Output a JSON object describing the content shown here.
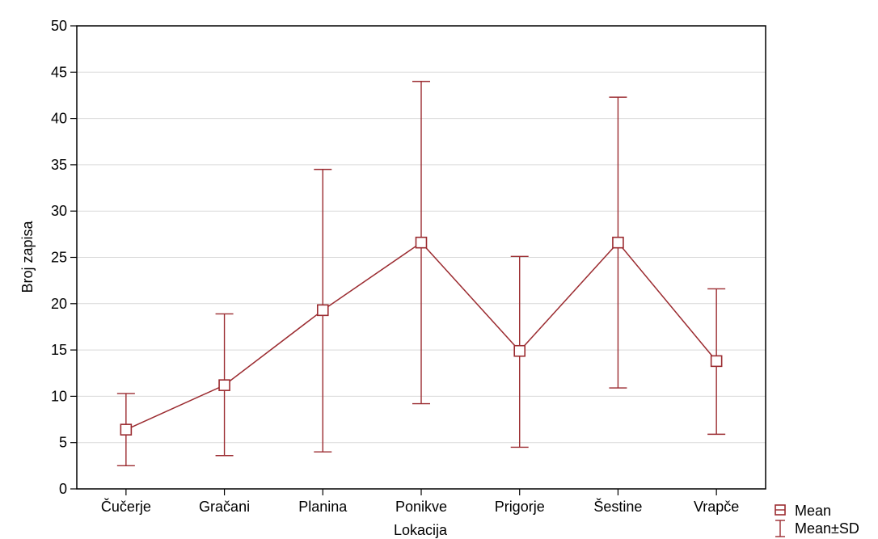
{
  "chart_data": {
    "type": "line",
    "title": "",
    "xlabel": "Lokacija",
    "ylabel": "Broj zapisa",
    "ylim": [
      0,
      50
    ],
    "yticks": [
      0,
      5,
      10,
      15,
      20,
      25,
      30,
      35,
      40,
      45,
      50
    ],
    "grid": true,
    "legend_position": "bottom-right",
    "categories": [
      "Čučerje",
      "Gračani",
      "Planina",
      "Ponikve",
      "Prigorje",
      "Šestine",
      "Vrapče"
    ],
    "series": [
      {
        "name": "Mean",
        "values": [
          6.4,
          11.2,
          19.3,
          26.6,
          14.9,
          26.6,
          13.8
        ],
        "sd_low": [
          2.5,
          3.6,
          4.0,
          9.2,
          4.5,
          10.9,
          5.9
        ],
        "sd_high": [
          10.3,
          18.9,
          34.5,
          44.0,
          25.1,
          42.3,
          21.6
        ]
      }
    ],
    "legend": {
      "mean_label": "Mean",
      "sd_label": "Mean±SD"
    },
    "colors": {
      "series": "#9b2b30",
      "grid": "#d9d9d9",
      "axis": "#000000"
    }
  }
}
